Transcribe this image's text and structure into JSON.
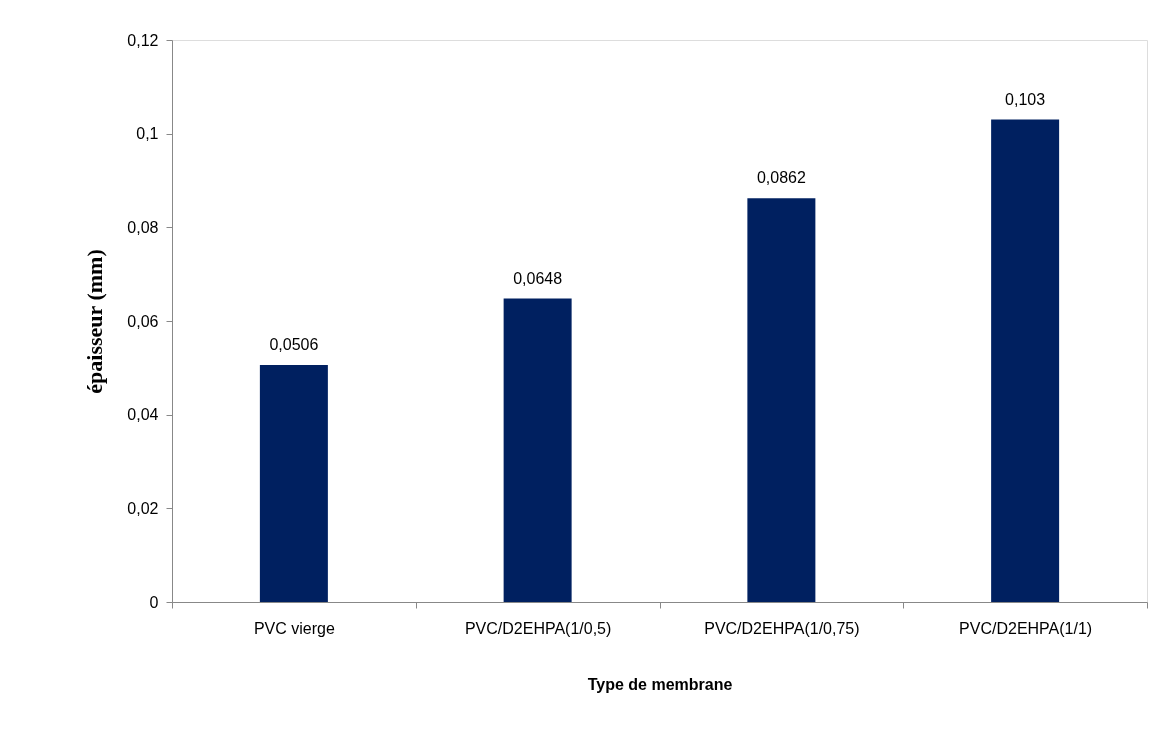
{
  "chart_data": {
    "type": "bar",
    "xlabel": "Type de membrane",
    "ylabel": "épaisseur (mm)",
    "categories": [
      "PVC vierge",
      "PVC/D2EHPA(1/0,5)",
      "PVC/D2EHPA(1/0,75)",
      "PVC/D2EHPA(1/1)"
    ],
    "values": [
      0.0506,
      0.0648,
      0.0862,
      0.103
    ],
    "value_labels": [
      "0,0506",
      "0,0648",
      "0,0862",
      "0,103"
    ],
    "color": "#002060",
    "ylim": [
      0,
      0.12
    ],
    "yticks": [
      0,
      {
        "value": 0.02,
        "label": "0,02"
      },
      {
        "value": 0.04,
        "label": "0,04"
      },
      {
        "value": 0.06,
        "label": "0,06"
      },
      {
        "value": 0.08,
        "label": "0,08"
      },
      {
        "value": 0.1,
        "label": "0,1"
      },
      {
        "value": 0.12,
        "label": "0,12"
      }
    ],
    "grid": false
  }
}
